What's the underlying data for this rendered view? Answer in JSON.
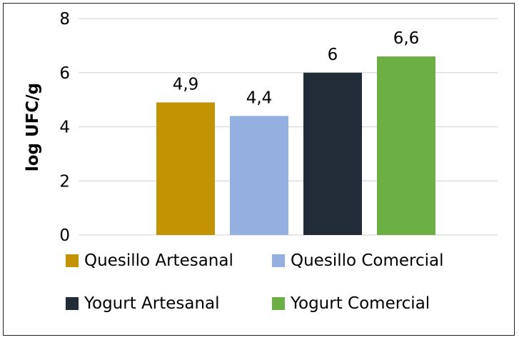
{
  "chart_data": {
    "type": "bar",
    "categories": [
      "Quesillo Artesanal",
      "Quesillo Comercial",
      "Yogurt Artesanal",
      "Yogurt Comercial"
    ],
    "values": [
      4.9,
      4.4,
      6,
      6.6
    ],
    "value_labels": [
      "4,9",
      "4,4",
      "6",
      "6,6"
    ],
    "colors": [
      "#C49303",
      "#93B0E0",
      "#222B38",
      "#6CAF45"
    ],
    "ylabel": "log UFC/g",
    "ylim": [
      0,
      8
    ],
    "yticks": [
      "0",
      "2",
      "4",
      "6",
      "8"
    ],
    "grid": true,
    "legend_position": "bottom"
  }
}
